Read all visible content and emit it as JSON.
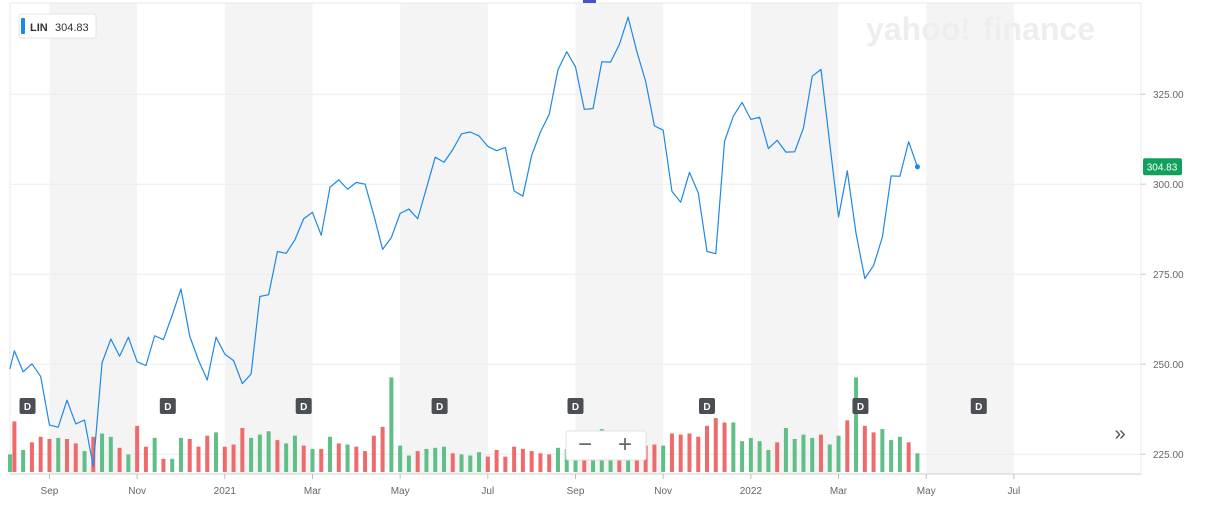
{
  "ticker": {
    "symbol": "LIN",
    "price": "304.83"
  },
  "watermark": {
    "text_left": "yahoo",
    "text_slash": "!",
    "text_right": "finance"
  },
  "controls": {
    "zoom_out": "−",
    "zoom_in": "+",
    "expand": "»"
  },
  "colors": {
    "line": "#1e88e5",
    "up_volume": "#5fbf87",
    "down_volume": "#ef6b6b",
    "price_badge": "#12a05c",
    "band": "#f4f4f4",
    "grid": "#ececec",
    "dividend_marker": "#4b4f55"
  },
  "chart_data": {
    "type": "line",
    "title": "",
    "xlabel": "",
    "ylabel": "",
    "ylim": [
      219.5,
      349.5
    ],
    "y_ticks": [
      "225.00",
      "250.00",
      "275.00",
      "300.00",
      "325.00"
    ],
    "x_ticks": [
      "Sep",
      "Nov",
      "2021",
      "Mar",
      "May",
      "Jul",
      "Sep",
      "Nov",
      "2022",
      "Mar",
      "May",
      "Jul"
    ],
    "x_tick_positions": [
      1.0,
      3.0,
      5.0,
      7.0,
      9.0,
      11.0,
      13.0,
      15.0,
      17.0,
      19.0,
      21.0,
      23.0
    ],
    "x_range": [
      0.1,
      25.9
    ],
    "series": [
      {
        "values": [
          [
            0.1,
            248.8
          ],
          [
            0.2,
            253.7
          ],
          [
            0.4,
            247.9
          ],
          [
            0.6,
            250.1
          ],
          [
            0.8,
            246.6
          ],
          [
            1.0,
            233.1
          ],
          [
            1.2,
            232.5
          ],
          [
            1.4,
            240.0
          ],
          [
            1.6,
            233.4
          ],
          [
            1.8,
            234.5
          ],
          [
            2.0,
            221.6
          ],
          [
            2.2,
            250.4
          ],
          [
            2.4,
            257.0
          ],
          [
            2.6,
            252.2
          ],
          [
            2.8,
            257.5
          ],
          [
            3.0,
            250.7
          ],
          [
            3.2,
            249.6
          ],
          [
            3.4,
            257.9
          ],
          [
            3.6,
            256.8
          ],
          [
            3.8,
            263.6
          ],
          [
            4.0,
            270.9
          ],
          [
            4.2,
            257.8
          ],
          [
            4.4,
            251.1
          ],
          [
            4.6,
            245.6
          ],
          [
            4.8,
            257.5
          ],
          [
            5.0,
            252.8
          ],
          [
            5.2,
            251.0
          ],
          [
            5.4,
            244.6
          ],
          [
            5.6,
            247.3
          ],
          [
            5.8,
            268.8
          ],
          [
            6.0,
            269.3
          ],
          [
            6.2,
            281.3
          ],
          [
            6.4,
            280.8
          ],
          [
            6.6,
            284.6
          ],
          [
            6.8,
            290.4
          ],
          [
            7.0,
            292.2
          ],
          [
            7.2,
            285.8
          ],
          [
            7.4,
            299.2
          ],
          [
            7.6,
            301.2
          ],
          [
            7.8,
            298.6
          ],
          [
            8.0,
            300.5
          ],
          [
            8.2,
            300.0
          ],
          [
            8.4,
            291.4
          ],
          [
            8.6,
            281.9
          ],
          [
            8.8,
            285.2
          ],
          [
            9.0,
            291.9
          ],
          [
            9.2,
            293.1
          ],
          [
            9.4,
            290.4
          ],
          [
            9.6,
            298.9
          ],
          [
            9.8,
            307.5
          ],
          [
            10.0,
            306.1
          ],
          [
            10.2,
            309.6
          ],
          [
            10.4,
            314.0
          ],
          [
            10.6,
            314.5
          ],
          [
            10.8,
            313.4
          ],
          [
            11.0,
            310.5
          ],
          [
            11.2,
            309.3
          ],
          [
            11.4,
            310.2
          ],
          [
            11.6,
            298.1
          ],
          [
            11.8,
            296.7
          ],
          [
            12.0,
            308.0
          ],
          [
            12.2,
            314.5
          ],
          [
            12.4,
            319.4
          ],
          [
            12.6,
            331.8
          ],
          [
            12.8,
            336.8
          ],
          [
            13.0,
            332.6
          ],
          [
            13.2,
            320.8
          ],
          [
            13.4,
            321.0
          ],
          [
            13.6,
            334.0
          ],
          [
            13.8,
            333.9
          ],
          [
            14.0,
            338.8
          ],
          [
            14.2,
            346.4
          ],
          [
            14.4,
            336.8
          ],
          [
            14.6,
            328.6
          ],
          [
            14.8,
            316.2
          ],
          [
            15.0,
            315.0
          ],
          [
            15.2,
            298.0
          ],
          [
            15.4,
            295.0
          ],
          [
            15.6,
            303.3
          ],
          [
            15.8,
            297.6
          ],
          [
            16.0,
            281.3
          ],
          [
            16.2,
            280.7
          ],
          [
            16.4,
            311.9
          ],
          [
            16.6,
            318.9
          ],
          [
            16.8,
            322.7
          ],
          [
            17.0,
            318.0
          ],
          [
            17.2,
            318.6
          ],
          [
            17.4,
            309.9
          ],
          [
            17.6,
            312.2
          ],
          [
            17.8,
            308.9
          ],
          [
            18.0,
            309.0
          ],
          [
            18.2,
            315.6
          ],
          [
            18.4,
            330.0
          ],
          [
            18.6,
            331.9
          ],
          [
            18.8,
            311.3
          ],
          [
            19.0,
            290.9
          ],
          [
            19.2,
            303.7
          ],
          [
            19.4,
            286.3
          ],
          [
            19.6,
            273.8
          ],
          [
            19.8,
            277.4
          ],
          [
            20.0,
            285.3
          ],
          [
            20.2,
            302.3
          ],
          [
            20.4,
            302.2
          ],
          [
            20.6,
            311.8
          ],
          [
            20.8,
            304.83
          ]
        ]
      }
    ],
    "volume": {
      "values": [
        [
          0.1,
          0.16,
          "up"
        ],
        [
          0.2,
          0.46,
          "down"
        ],
        [
          0.4,
          0.2,
          "up"
        ],
        [
          0.6,
          0.27,
          "down"
        ],
        [
          0.8,
          0.32,
          "down"
        ],
        [
          1.0,
          0.3,
          "down"
        ],
        [
          1.2,
          0.31,
          "up"
        ],
        [
          1.4,
          0.3,
          "down"
        ],
        [
          1.6,
          0.26,
          "down"
        ],
        [
          1.8,
          0.19,
          "up"
        ],
        [
          2.0,
          0.32,
          "down"
        ],
        [
          2.2,
          0.35,
          "up"
        ],
        [
          2.4,
          0.32,
          "up"
        ],
        [
          2.6,
          0.22,
          "down"
        ],
        [
          2.8,
          0.16,
          "up"
        ],
        [
          3.0,
          0.42,
          "down"
        ],
        [
          3.2,
          0.23,
          "down"
        ],
        [
          3.4,
          0.31,
          "up"
        ],
        [
          3.6,
          0.12,
          "down"
        ],
        [
          3.8,
          0.12,
          "up"
        ],
        [
          4.0,
          0.31,
          "up"
        ],
        [
          4.2,
          0.3,
          "down"
        ],
        [
          4.4,
          0.23,
          "down"
        ],
        [
          4.6,
          0.33,
          "down"
        ],
        [
          4.8,
          0.36,
          "up"
        ],
        [
          5.0,
          0.23,
          "down"
        ],
        [
          5.2,
          0.25,
          "down"
        ],
        [
          5.4,
          0.4,
          "down"
        ],
        [
          5.6,
          0.31,
          "up"
        ],
        [
          5.8,
          0.34,
          "up"
        ],
        [
          6.0,
          0.37,
          "up"
        ],
        [
          6.2,
          0.29,
          "down"
        ],
        [
          6.4,
          0.26,
          "up"
        ],
        [
          6.6,
          0.33,
          "up"
        ],
        [
          6.8,
          0.24,
          "down"
        ],
        [
          7.0,
          0.21,
          "up"
        ],
        [
          7.2,
          0.21,
          "down"
        ],
        [
          7.4,
          0.32,
          "up"
        ],
        [
          7.6,
          0.26,
          "down"
        ],
        [
          7.8,
          0.25,
          "up"
        ],
        [
          8.0,
          0.23,
          "down"
        ],
        [
          8.2,
          0.19,
          "down"
        ],
        [
          8.4,
          0.33,
          "down"
        ],
        [
          8.6,
          0.41,
          "down"
        ],
        [
          8.8,
          0.86,
          "up"
        ],
        [
          9.0,
          0.24,
          "up"
        ],
        [
          9.2,
          0.15,
          "up"
        ],
        [
          9.4,
          0.19,
          "down"
        ],
        [
          9.6,
          0.21,
          "up"
        ],
        [
          9.8,
          0.22,
          "up"
        ],
        [
          10.0,
          0.23,
          "up"
        ],
        [
          10.2,
          0.17,
          "down"
        ],
        [
          10.4,
          0.16,
          "up"
        ],
        [
          10.6,
          0.15,
          "up"
        ],
        [
          10.8,
          0.18,
          "up"
        ],
        [
          11.0,
          0.14,
          "down"
        ],
        [
          11.2,
          0.2,
          "down"
        ],
        [
          11.4,
          0.14,
          "down"
        ],
        [
          11.6,
          0.23,
          "down"
        ],
        [
          11.8,
          0.21,
          "down"
        ],
        [
          12.0,
          0.19,
          "down"
        ],
        [
          12.2,
          0.17,
          "down"
        ],
        [
          12.4,
          0.16,
          "down"
        ],
        [
          12.6,
          0.22,
          "up"
        ],
        [
          12.8,
          0.21,
          "up"
        ],
        [
          13.0,
          0.2,
          "up"
        ],
        [
          13.2,
          0.26,
          "down"
        ],
        [
          13.4,
          0.14,
          "up"
        ],
        [
          13.6,
          0.39,
          "up"
        ],
        [
          13.8,
          0.22,
          "up"
        ],
        [
          14.0,
          0.17,
          "down"
        ],
        [
          14.2,
          0.25,
          "up"
        ],
        [
          14.4,
          0.13,
          "down"
        ],
        [
          14.6,
          0.24,
          "down"
        ],
        [
          14.8,
          0.25,
          "down"
        ],
        [
          15.0,
          0.24,
          "up"
        ],
        [
          15.2,
          0.35,
          "down"
        ],
        [
          15.4,
          0.34,
          "down"
        ],
        [
          15.6,
          0.35,
          "down"
        ],
        [
          15.8,
          0.32,
          "down"
        ],
        [
          16.0,
          0.42,
          "down"
        ],
        [
          16.2,
          0.49,
          "down"
        ],
        [
          16.4,
          0.45,
          "down"
        ],
        [
          16.6,
          0.45,
          "up"
        ],
        [
          16.8,
          0.28,
          "up"
        ],
        [
          17.0,
          0.31,
          "up"
        ],
        [
          17.2,
          0.28,
          "up"
        ],
        [
          17.4,
          0.2,
          "up"
        ],
        [
          17.6,
          0.27,
          "down"
        ],
        [
          17.8,
          0.4,
          "up"
        ],
        [
          18.0,
          0.3,
          "up"
        ],
        [
          18.2,
          0.34,
          "up"
        ],
        [
          18.4,
          0.31,
          "up"
        ],
        [
          18.6,
          0.34,
          "down"
        ],
        [
          18.8,
          0.25,
          "up"
        ],
        [
          19.0,
          0.33,
          "up"
        ],
        [
          19.2,
          0.47,
          "down"
        ],
        [
          19.4,
          0.86,
          "up"
        ],
        [
          19.6,
          0.42,
          "down"
        ],
        [
          19.8,
          0.36,
          "down"
        ],
        [
          20.0,
          0.39,
          "up"
        ],
        [
          20.2,
          0.29,
          "up"
        ],
        [
          20.4,
          0.32,
          "up"
        ],
        [
          20.6,
          0.27,
          "down"
        ],
        [
          20.8,
          0.17,
          "up"
        ]
      ]
    },
    "dividend_markers": [
      {
        "label": "D",
        "x": 0.5
      },
      {
        "label": "D",
        "x": 3.7
      },
      {
        "label": "D",
        "x": 6.8
      },
      {
        "label": "D",
        "x": 9.9
      },
      {
        "label": "D",
        "x": 13.0
      },
      {
        "label": "D",
        "x": 16.0
      },
      {
        "label": "D",
        "x": 19.5
      },
      {
        "label": "D",
        "x": 22.2
      }
    ],
    "current_value": "304.83",
    "grid": true,
    "legend": "none"
  }
}
